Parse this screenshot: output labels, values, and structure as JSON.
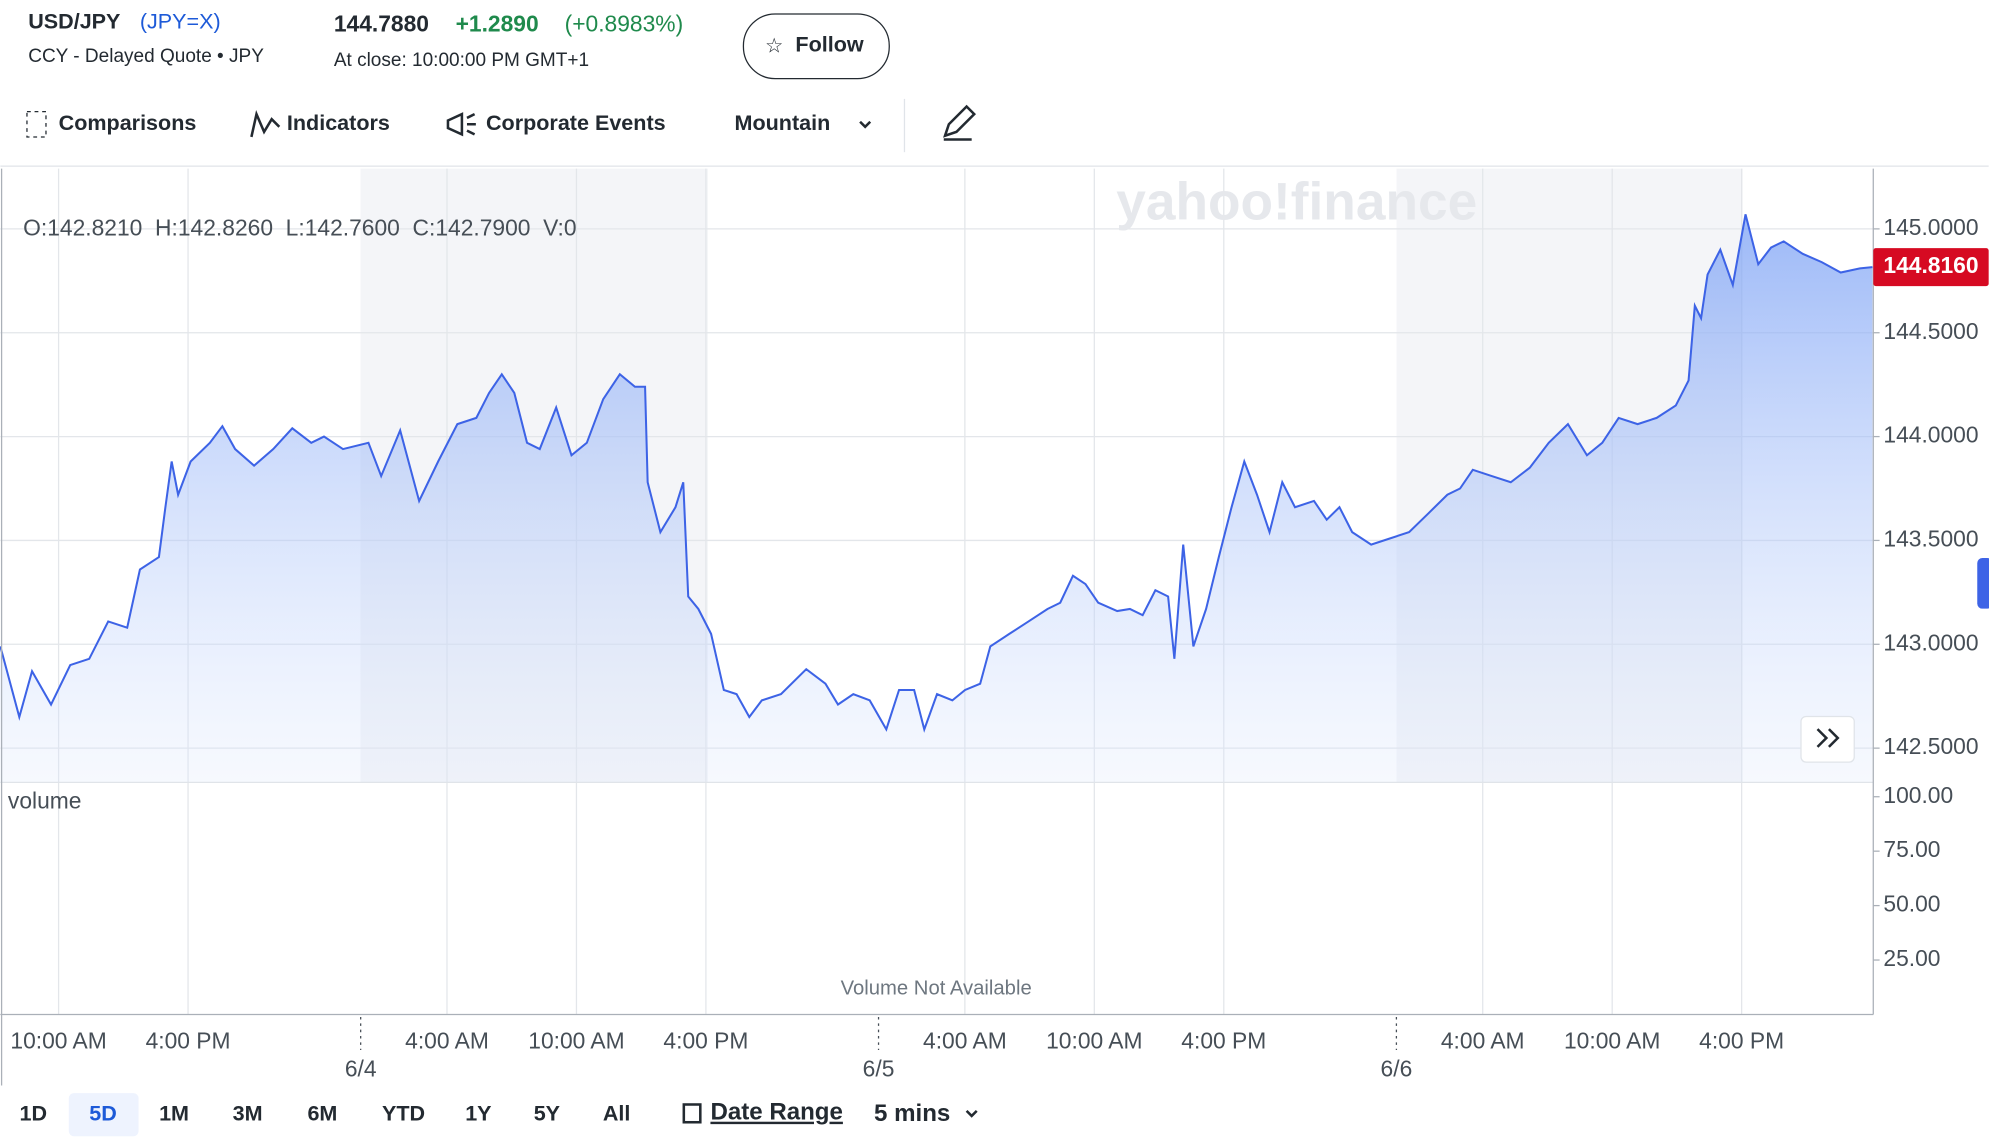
{
  "header": {
    "name": "USD/JPY",
    "symbol": "(JPY=X)",
    "subtitle": "CCY - Delayed Quote • JPY",
    "price": "144.7880",
    "change": "+1.2890",
    "change_percent": "(+0.8983%)",
    "close_time": "At close: 10:00:00 PM GMT+1",
    "follow": "Follow"
  },
  "toolbar": {
    "items": [
      "Comparisons",
      "Indicators",
      "Corporate Events"
    ],
    "chart_style": "Mountain"
  },
  "watermark": "yahoo!finance",
  "ohlc": "O:142.8210  H:142.8260  L:142.7600  C:142.7900  V:0",
  "ranges": {
    "buttons": [
      "1D",
      "5D",
      "1M",
      "3M",
      "6M",
      "YTD",
      "1Y",
      "5Y",
      "All"
    ],
    "date_range": "Date Range",
    "interval": "5 mins"
  },
  "chart_data": [
    {
      "type": "area",
      "color": "#3d63e6",
      "last_label": "144.8160",
      "x": [
        7.3,
        8.18,
        8.77,
        9.65,
        10.54,
        11.42,
        12.3,
        13.18,
        13.77,
        14.65,
        14.95,
        15.24,
        15.54,
        16.12,
        17.01,
        17.59,
        18.18,
        19.06,
        19.95,
        20.83,
        21.71,
        22.3,
        23.18,
        24.36,
        24.95,
        25.83,
        26.71,
        27.59,
        28.48,
        29.36,
        29.95,
        30.54,
        31.12,
        31.71,
        32.3,
        33.06,
        33.77,
        34.48,
        35.24,
        36.01,
        36.71,
        37.18,
        37.3,
        37.89,
        38.59,
        38.95,
        39.18,
        39.65,
        40.24,
        40.83,
        41.42,
        42.01,
        42.59,
        43.48,
        44.65,
        45.54,
        46.12,
        46.83,
        47.59,
        48.36,
        48.95,
        49.65,
        50.12,
        50.71,
        51.42,
        52.01,
        52.71,
        53.18,
        54.06,
        54.95,
        55.83,
        56.42,
        57.01,
        57.59,
        58.18,
        59.06,
        59.65,
        60.24,
        60.83,
        61.42,
        61.71,
        62.12,
        62.59,
        63.18,
        63.77,
        64.36,
        64.95,
        65.54,
        66.12,
        66.71,
        67.3,
        68.18,
        68.77,
        69.36,
        69.95,
        70.83,
        71.71,
        72.59,
        73.48,
        74.36,
        74.95,
        75.54,
        76.42,
        77.3,
        78.18,
        79.06,
        79.95,
        80.83,
        81.54,
        82.3,
        83.18,
        84.06,
        84.95,
        85.54,
        85.83,
        86.12,
        86.42,
        87.01,
        87.59,
        88.18,
        88.77,
        89.36,
        89.95,
        90.83,
        91.71,
        92.59,
        93.48,
        94.06
      ],
      "values": [
        142.99,
        142.65,
        142.87,
        142.71,
        142.9,
        142.93,
        143.11,
        143.08,
        143.36,
        143.42,
        143.66,
        143.88,
        143.72,
        143.88,
        143.97,
        144.05,
        143.94,
        143.86,
        143.94,
        144.04,
        143.97,
        144.0,
        143.94,
        143.97,
        143.81,
        144.03,
        143.69,
        143.88,
        144.06,
        144.09,
        144.21,
        144.3,
        144.21,
        143.97,
        143.94,
        144.14,
        143.91,
        143.97,
        144.18,
        144.3,
        144.24,
        144.24,
        143.78,
        143.54,
        143.66,
        143.78,
        143.23,
        143.17,
        143.05,
        142.78,
        142.76,
        142.65,
        142.73,
        142.76,
        142.88,
        142.81,
        142.71,
        142.76,
        142.73,
        142.59,
        142.78,
        142.78,
        142.59,
        142.76,
        142.73,
        142.78,
        142.81,
        142.99,
        143.05,
        143.11,
        143.17,
        143.2,
        143.33,
        143.29,
        143.2,
        143.16,
        143.17,
        143.14,
        143.26,
        143.23,
        142.93,
        143.48,
        142.99,
        143.17,
        143.42,
        143.66,
        143.88,
        143.72,
        143.54,
        143.78,
        143.66,
        143.69,
        143.6,
        143.66,
        143.54,
        143.48,
        143.51,
        143.54,
        143.63,
        143.72,
        143.75,
        143.84,
        143.81,
        143.78,
        143.85,
        143.97,
        144.06,
        143.91,
        143.97,
        144.09,
        144.06,
        144.09,
        144.15,
        144.27,
        144.63,
        144.57,
        144.78,
        144.9,
        144.73,
        145.07,
        144.83,
        144.91,
        144.94,
        144.88,
        144.84,
        144.79,
        144.81,
        144.816
      ],
      "xlim": [
        7.3,
        94.1
      ],
      "xticks": [
        {
          "value": 10,
          "label": "10:00 AM"
        },
        {
          "value": 16,
          "label": "4:00 PM"
        },
        {
          "value": 24,
          "label": "6/4"
        },
        {
          "value": 28,
          "label": "4:00 AM"
        },
        {
          "value": 34,
          "label": "10:00 AM"
        },
        {
          "value": 40,
          "label": "4:00 PM"
        },
        {
          "value": 48,
          "label": "6/5"
        },
        {
          "value": 52,
          "label": "4:00 AM"
        },
        {
          "value": 58,
          "label": "10:00 AM"
        },
        {
          "value": 64,
          "label": "4:00 PM"
        },
        {
          "value": 72,
          "label": "6/6"
        },
        {
          "value": 76,
          "label": "4:00 AM"
        },
        {
          "value": 82,
          "label": "10:00 AM"
        },
        {
          "value": 88,
          "label": "4:00 PM"
        }
      ],
      "ylim": [
        142.335,
        145.29
      ],
      "yticks": [
        {
          "value": 142.5,
          "label": "142.5000"
        },
        {
          "value": 143,
          "label": "143.0000"
        },
        {
          "value": 143.5,
          "label": "143.5000"
        },
        {
          "value": 144,
          "label": "144.0000"
        },
        {
          "value": 144.5,
          "label": "144.5000"
        },
        {
          "value": 145,
          "label": "145.0000"
        }
      ],
      "grid": true
    },
    {
      "type": "volume",
      "title": "volume",
      "note": "Volume Not Available",
      "ylim": [
        0,
        106
      ],
      "yticks": [
        {
          "value": 25,
          "label": "25.00"
        },
        {
          "value": 50,
          "label": "50.00"
        },
        {
          "value": 75,
          "label": "75.00"
        },
        {
          "value": 100,
          "label": "100.00"
        }
      ]
    }
  ]
}
